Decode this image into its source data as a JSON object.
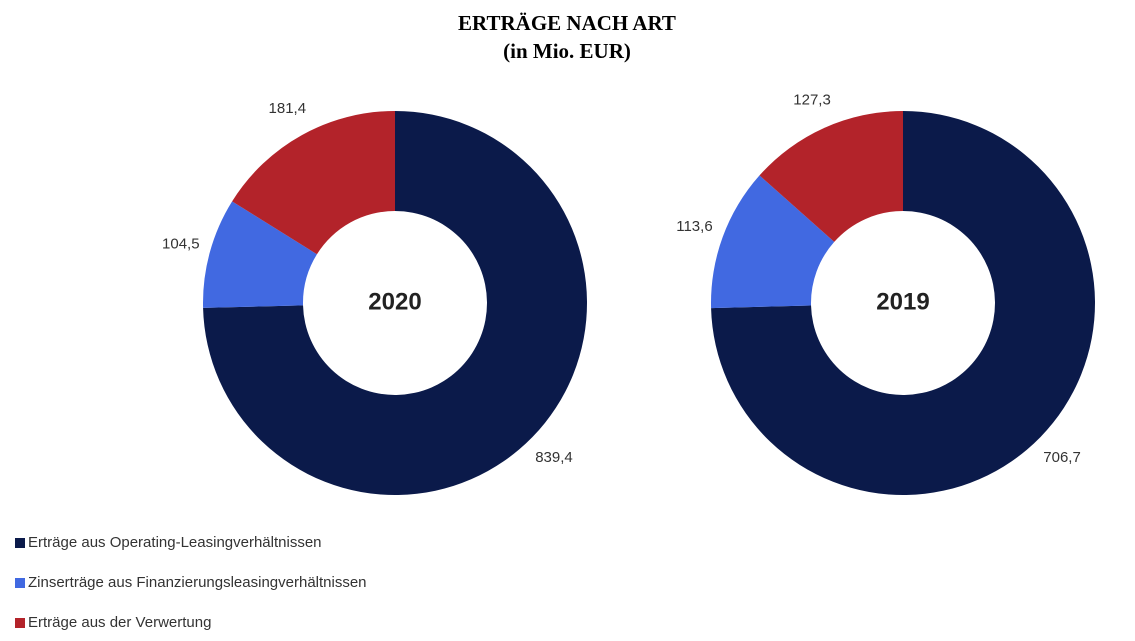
{
  "title": "ERTRÄGE NACH ART",
  "subtitle": "(in Mio. EUR)",
  "categories": [
    "Erträge aus Operating-Leasingverhältnissen",
    "Zinserträge aus Finanzierungsleasingverhältnissen",
    "Erträge aus der Verwertung"
  ],
  "colors": [
    "#0b1a4a",
    "#4169e1",
    "#b3232a"
  ],
  "chart_data": [
    {
      "type": "pie",
      "title": "2020",
      "values": [
        839.4,
        104.5,
        181.4
      ],
      "value_labels": [
        "839,4",
        "104,5",
        "181,4"
      ]
    },
    {
      "type": "pie",
      "title": "2019",
      "values": [
        706.7,
        113.6,
        127.3
      ],
      "value_labels": [
        "706,7",
        "113,6",
        "127,3"
      ]
    }
  ]
}
